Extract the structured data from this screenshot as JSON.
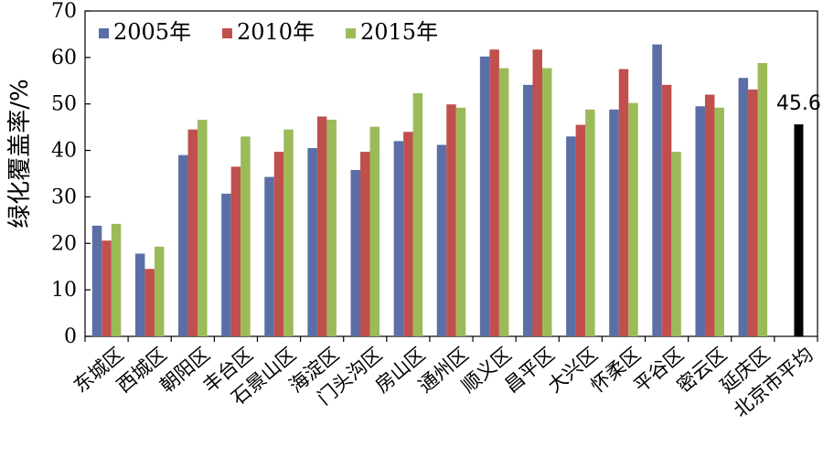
{
  "chart_data": {
    "type": "bar",
    "title": "",
    "xlabel": "",
    "ylabel": "绿化覆盖率/%",
    "ylim": [
      0,
      70
    ],
    "yticks": [
      0,
      10,
      20,
      30,
      40,
      50,
      60,
      70
    ],
    "grid": false,
    "legend_position": "top-left",
    "categories": [
      "东城区",
      "西城区",
      "朝阳区",
      "丰台区",
      "石景山区",
      "海淀区",
      "门头沟区",
      "房山区",
      "通州区",
      "顺义区",
      "昌平区",
      "大兴区",
      "怀柔区",
      "平谷区",
      "密云区",
      "延庆区",
      "北京市平均"
    ],
    "series": [
      {
        "name": "2005年",
        "color": "#5b6fa6",
        "values": [
          23.8,
          17.8,
          39.0,
          30.7,
          34.3,
          40.5,
          35.8,
          42.0,
          41.2,
          60.2,
          54.1,
          43.0,
          48.8,
          62.8,
          49.5,
          55.6,
          null
        ]
      },
      {
        "name": "2010年",
        "color": "#c0504d",
        "values": [
          20.6,
          14.5,
          44.5,
          36.5,
          39.7,
          47.3,
          39.7,
          44.0,
          49.9,
          61.7,
          61.7,
          45.5,
          57.5,
          54.1,
          52.0,
          53.1,
          null
        ]
      },
      {
        "name": "2015年",
        "color": "#9bbb59",
        "values": [
          24.2,
          19.3,
          46.6,
          43.0,
          44.5,
          46.6,
          45.1,
          52.3,
          49.2,
          57.7,
          57.7,
          48.8,
          50.2,
          39.7,
          49.2,
          58.8,
          null
        ]
      }
    ],
    "average": {
      "category": "北京市平均",
      "value": 45.6,
      "label": "45.6",
      "color": "#000000"
    }
  }
}
